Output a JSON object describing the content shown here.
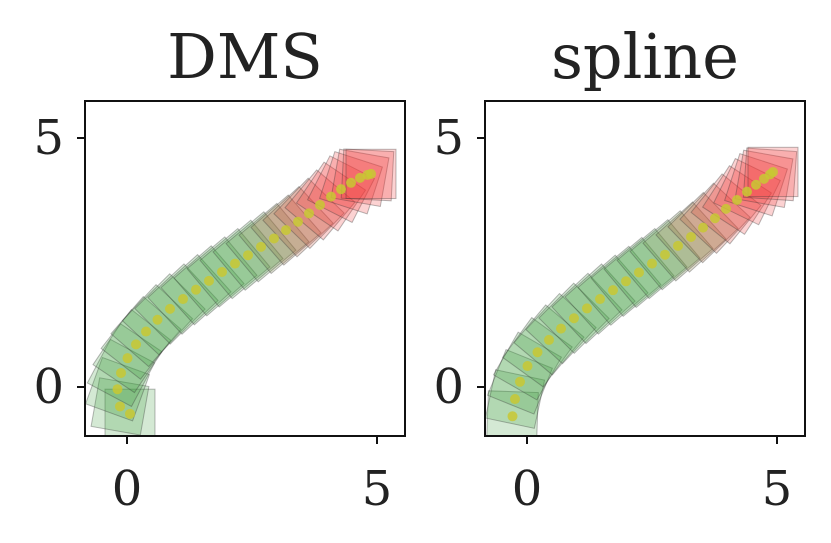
{
  "chart_data": [
    {
      "type": "scatter",
      "title": "DMS",
      "xlabel": "",
      "ylabel": "",
      "xlim": [
        -0.9,
        5.5
      ],
      "ylim": [
        -1.0,
        5.8
      ],
      "xticks": [
        0,
        5
      ],
      "yticks": [
        0,
        5
      ],
      "xtick_labels": [
        "0",
        "5"
      ],
      "ytick_labels": [
        "0",
        "5"
      ],
      "box_size": 1.0,
      "x": [
        0.0,
        -0.2,
        -0.25,
        -0.18,
        -0.05,
        0.12,
        0.32,
        0.55,
        0.8,
        1.06,
        1.32,
        1.58,
        1.84,
        2.1,
        2.36,
        2.62,
        2.88,
        3.12,
        3.36,
        3.58,
        3.8,
        4.02,
        4.22,
        4.42,
        4.6,
        4.75,
        4.82
      ],
      "y": [
        -0.55,
        -0.4,
        -0.05,
        0.28,
        0.58,
        0.86,
        1.12,
        1.36,
        1.58,
        1.78,
        1.97,
        2.15,
        2.33,
        2.5,
        2.67,
        2.84,
        3.01,
        3.18,
        3.35,
        3.52,
        3.69,
        3.86,
        4.01,
        4.14,
        4.24,
        4.3,
        4.32
      ],
      "heading_deg": [
        90,
        80,
        70,
        62,
        56,
        52,
        49,
        47,
        45,
        43,
        42,
        41,
        40,
        40,
        40,
        40,
        40,
        41,
        43,
        46,
        50,
        56,
        63,
        72,
        80,
        87,
        90
      ],
      "colors": {
        "safe": "#3a9a3a",
        "unsafe": "#f03030",
        "path": "#c8c832",
        "frame": "#111111"
      }
    },
    {
      "type": "scatter",
      "title": "spline",
      "xlabel": "",
      "ylabel": "",
      "xlim": [
        -0.9,
        5.5
      ],
      "ylim": [
        -1.0,
        5.8
      ],
      "xticks": [
        0,
        5
      ],
      "yticks": [
        0,
        5
      ],
      "xtick_labels": [
        "0",
        "5"
      ],
      "ytick_labels": [
        "0",
        "5"
      ],
      "box_size": 1.0,
      "x": [
        -0.35,
        -0.3,
        -0.2,
        -0.05,
        0.15,
        0.38,
        0.62,
        0.88,
        1.14,
        1.4,
        1.66,
        1.92,
        2.18,
        2.44,
        2.7,
        2.96,
        3.22,
        3.46,
        3.7,
        3.92,
        4.14,
        4.34,
        4.52,
        4.68,
        4.8,
        4.86
      ],
      "y": [
        -0.6,
        -0.25,
        0.1,
        0.42,
        0.7,
        0.95,
        1.18,
        1.39,
        1.59,
        1.78,
        1.96,
        2.14,
        2.32,
        2.5,
        2.68,
        2.86,
        3.04,
        3.23,
        3.42,
        3.61,
        3.79,
        3.96,
        4.1,
        4.22,
        4.31,
        4.36
      ],
      "heading_deg": [
        88,
        78,
        68,
        60,
        54,
        50,
        47,
        45,
        43,
        42,
        41,
        40,
        40,
        40,
        40,
        41,
        42,
        44,
        47,
        51,
        57,
        64,
        72,
        80,
        86,
        90
      ],
      "colors": {
        "safe": "#3a9a3a",
        "unsafe": "#f03030",
        "path": "#c8c832",
        "frame": "#111111"
      }
    }
  ]
}
